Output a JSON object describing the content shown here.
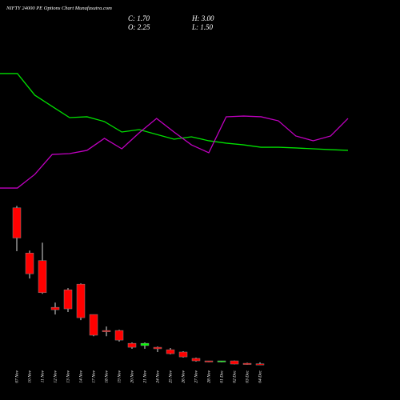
{
  "chart_data": [
    {
      "type": "candlestick",
      "title": "NIFTY 24000 PE Options Chart Munafasutra.com",
      "annotations": [
        "C: 1.70",
        "O: 2.25",
        "H: 3.00",
        "L: 1.50"
      ],
      "categories": [
        "07 Nov",
        "10 Nov",
        "11 Nov",
        "12 Nov",
        "13 Nov",
        "14 Nov",
        "17 Nov",
        "18 Nov",
        "19 Nov",
        "20 Nov",
        "21 Nov",
        "24 Nov",
        "25 Nov",
        "26 Nov",
        "27 Nov",
        "28 Nov",
        "01 Dec",
        "02 Dec",
        "03 Dec",
        "04 Dec"
      ],
      "open": [
        85,
        61,
        57,
        32.2,
        41.5,
        44.5,
        28.4,
        19.9,
        19.9,
        13.1,
        11.9,
        11.0,
        9.7,
        8.5,
        5.1,
        3.8,
        3.4,
        3.8,
        2.5,
        2.25
      ],
      "high": [
        86,
        62.3,
        66.5,
        34.7,
        42.4,
        44.9,
        28.4,
        22.0,
        20.3,
        13.6,
        13.6,
        11.4,
        10.6,
        8.9,
        5.5,
        3.8,
        3.8,
        4.0,
        2.8,
        3.0
      ],
      "low": [
        62,
        47.5,
        39.4,
        28.4,
        29.7,
        25.4,
        16.9,
        16.9,
        14.0,
        10.2,
        10.2,
        8.5,
        7.2,
        5.5,
        3.4,
        3.0,
        3.0,
        1.9,
        1.7,
        1.5
      ],
      "close": [
        69,
        50,
        40,
        30.9,
        31.4,
        26.7,
        17.4,
        19.5,
        14.8,
        11.0,
        13.1,
        10.2,
        7.6,
        5.9,
        3.8,
        3.4,
        3.8,
        2.1,
        2.1,
        1.7
      ],
      "up_color": "#00ff00",
      "down_color": "#ff0000",
      "ylim": [
        0,
        90
      ]
    },
    {
      "type": "line",
      "series": [
        {
          "color": "#00e000",
          "values": [
            98.7,
            98.7,
            80.7,
            71.3,
            62,
            62.7,
            58.7,
            50,
            52,
            48,
            44,
            46,
            42.7,
            40.7,
            39.3,
            37.3,
            37.3,
            36.7,
            36,
            35.3,
            34.7
          ]
        },
        {
          "color": "#c000c0",
          "values": [
            3.3,
            3.3,
            14.7,
            31.3,
            32,
            34.7,
            44.7,
            36,
            49.3,
            61.3,
            50,
            39.3,
            32.7,
            62.7,
            63.3,
            62.7,
            59.3,
            46.7,
            42.7,
            46.7,
            61.3
          ]
        }
      ],
      "ylim": [
        0,
        100
      ]
    }
  ]
}
